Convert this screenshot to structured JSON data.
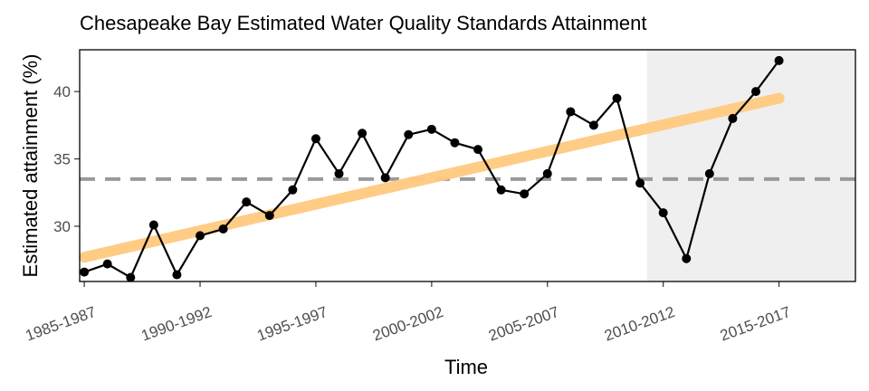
{
  "chart_data": {
    "type": "line",
    "title": "Chesapeake Bay Estimated Water Quality Standards Attainment",
    "xlabel": "Time",
    "ylabel": "Estimated attainment (%)",
    "x_tick_labels": [
      "1985-1987",
      "1990-1992",
      "1995-1997",
      "2000-2002",
      "2005-2007",
      "2010-2012",
      "2015-2017"
    ],
    "x_tick_years": [
      1985,
      1990,
      1995,
      2000,
      2005,
      2010,
      2015
    ],
    "y_ticks": [
      30,
      35,
      40
    ],
    "xlim": [
      1984.8,
      2018.3
    ],
    "ylim": [
      25.9,
      43.1
    ],
    "series": [
      {
        "name": "Estimated attainment",
        "color": "#000000",
        "x": [
          1985,
          1986,
          1987,
          1988,
          1989,
          1990,
          1991,
          1992,
          1993,
          1994,
          1995,
          1996,
          1997,
          1998,
          1999,
          2000,
          2001,
          2002,
          2003,
          2004,
          2005,
          2006,
          2007,
          2008,
          2009,
          2010,
          2011,
          2012,
          2013,
          2014,
          2015
        ],
        "values": [
          26.6,
          27.2,
          26.2,
          30.1,
          26.4,
          29.3,
          29.8,
          31.8,
          30.8,
          32.7,
          36.5,
          33.9,
          36.9,
          33.6,
          36.8,
          37.2,
          36.2,
          35.7,
          32.7,
          32.4,
          33.9,
          38.5,
          37.5,
          39.5,
          33.2,
          31.0,
          27.6,
          33.9,
          38.0,
          40.0,
          42.3
        ]
      }
    ],
    "trend_line": {
      "x": [
        1985,
        2015
      ],
      "values": [
        27.7,
        39.5
      ],
      "color": "#ffc97f"
    },
    "reference_line": {
      "value": 33.5,
      "color": "#999999",
      "style": "dashed"
    },
    "shaded_region": {
      "x_start": 2009.3,
      "x_end": 2018.3,
      "color": "#efefef"
    }
  }
}
